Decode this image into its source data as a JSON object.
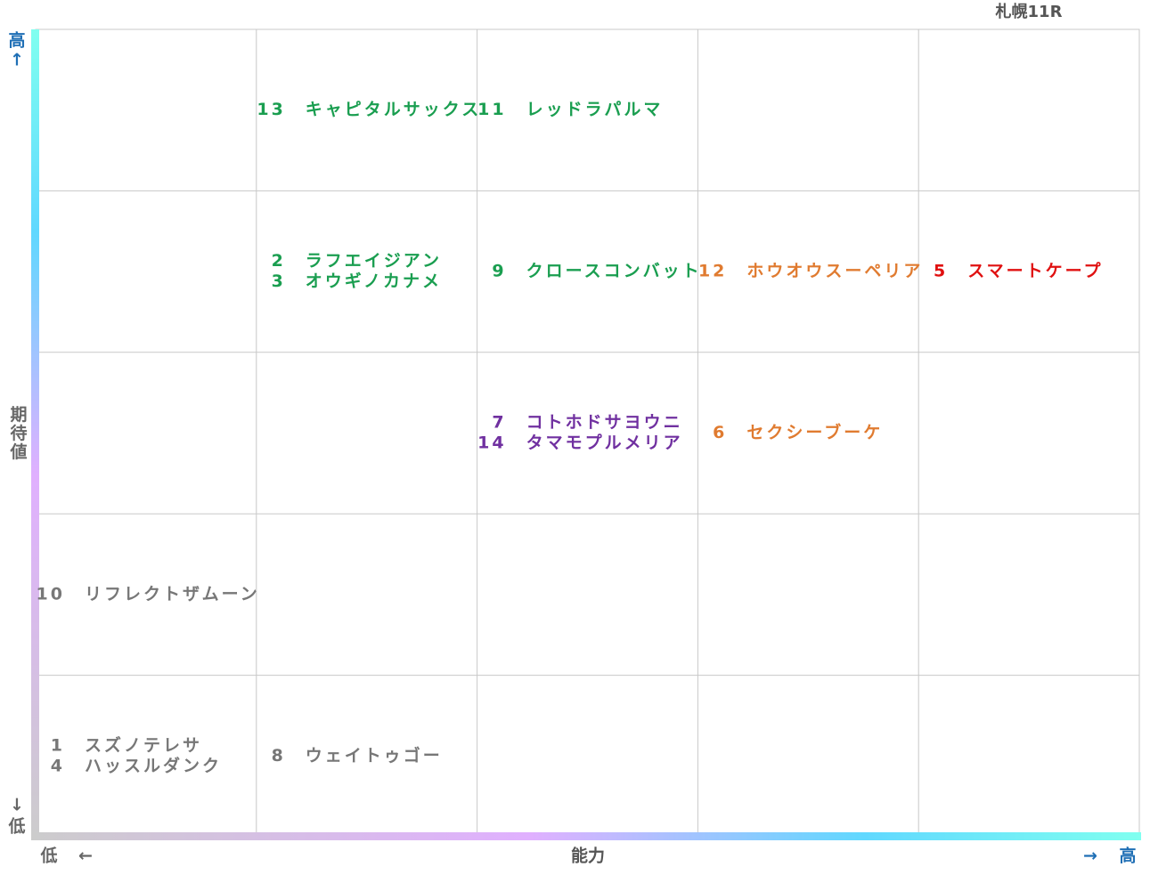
{
  "title": "札幌11R",
  "y_axis": {
    "high": "高",
    "up_arrow": "↑",
    "label": "期待値",
    "down_arrow": "↓",
    "low": "低"
  },
  "x_axis": {
    "low": "低",
    "left_arrow": "←",
    "label": "能力",
    "right_arrow": "→",
    "high": "高"
  },
  "grid": {
    "rows": [
      [
        [],
        [
          {
            "number": 13,
            "name": "キャピタルサックス",
            "color": "#1a9e50"
          }
        ],
        [
          {
            "number": 11,
            "name": "レッドラパルマ",
            "color": "#1a9e50"
          }
        ],
        [],
        []
      ],
      [
        [],
        [
          {
            "number": 2,
            "name": "ラフエイジアン",
            "color": "#1a9e50"
          },
          {
            "number": 3,
            "name": "オウギノカナメ",
            "color": "#1a9e50"
          }
        ],
        [
          {
            "number": 9,
            "name": "クロースコンバット",
            "color": "#1a9e50"
          }
        ],
        [
          {
            "number": 12,
            "name": "ホウオウスーペリア",
            "color": "#e07b30"
          }
        ],
        [
          {
            "number": 5,
            "name": "スマートケープ",
            "color": "#e01010"
          }
        ]
      ],
      [
        [],
        [],
        [
          {
            "number": 7,
            "name": "コトホドサヨウニ",
            "color": "#7030a0"
          },
          {
            "number": 14,
            "name": "タマモプルメリア",
            "color": "#7030a0"
          }
        ],
        [
          {
            "number": 6,
            "name": "セクシーブーケ",
            "color": "#e07b30"
          }
        ],
        []
      ],
      [
        [
          {
            "number": 10,
            "name": "リフレクトザムーン",
            "color": "#777777"
          }
        ],
        [],
        [],
        [],
        []
      ],
      [
        [
          {
            "number": 1,
            "name": "スズノテレサ",
            "color": "#777777"
          },
          {
            "number": 4,
            "name": "ハッスルダンク",
            "color": "#777777"
          }
        ],
        [
          {
            "number": 8,
            "name": "ウェイトゥゴー",
            "color": "#777777"
          }
        ],
        [],
        [],
        []
      ]
    ]
  }
}
